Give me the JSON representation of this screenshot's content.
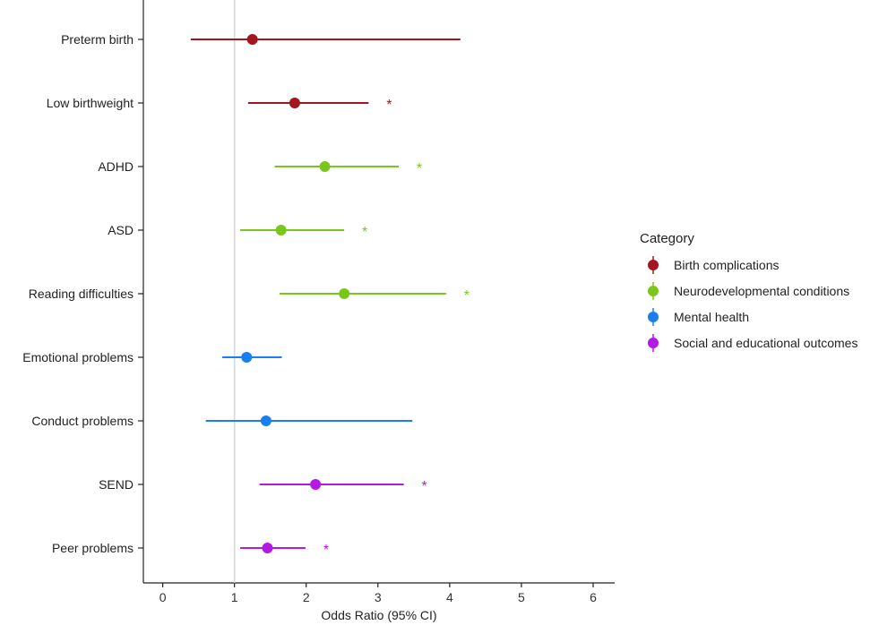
{
  "chart_data": {
    "type": "forest",
    "xlabel": "Odds Ratio (95% CI)",
    "xlim": [
      -0.27,
      6.3
    ],
    "xticks": [
      "0",
      "1",
      "2",
      "3",
      "4",
      "5",
      "6"
    ],
    "reference_line": 1,
    "legend": {
      "title": "Category",
      "position": "right",
      "items": [
        {
          "label": "Birth complications",
          "color": "#a3151f"
        },
        {
          "label": "Neurodevelopmental conditions",
          "color": "#79c71b"
        },
        {
          "label": "Mental health",
          "color": "#1a7fee"
        },
        {
          "label": "Social and educational outcomes",
          "color": "#b418e4"
        }
      ]
    },
    "rows": [
      {
        "label": "Preterm birth",
        "category": 0,
        "or": 1.25,
        "lo": 0.39,
        "hi": 4.15,
        "sig": false
      },
      {
        "label": "Low birthweight",
        "category": 0,
        "or": 1.84,
        "lo": 1.19,
        "hi": 2.87,
        "sig": true
      },
      {
        "label": "ADHD",
        "category": 1,
        "or": 2.26,
        "lo": 1.56,
        "hi": 3.29,
        "sig": true
      },
      {
        "label": "ASD",
        "category": 1,
        "or": 1.65,
        "lo": 1.08,
        "hi": 2.53,
        "sig": true
      },
      {
        "label": "Reading difficulties",
        "category": 1,
        "or": 2.53,
        "lo": 1.63,
        "hi": 3.95,
        "sig": true
      },
      {
        "label": "Emotional problems",
        "category": 2,
        "or": 1.17,
        "lo": 0.83,
        "hi": 1.66,
        "sig": false
      },
      {
        "label": "Conduct problems",
        "category": 2,
        "or": 1.44,
        "lo": 0.6,
        "hi": 3.48,
        "sig": false
      },
      {
        "label": "SEND",
        "category": 3,
        "or": 2.13,
        "lo": 1.35,
        "hi": 3.36,
        "sig": true
      },
      {
        "label": "Peer problems",
        "category": 3,
        "or": 1.46,
        "lo": 1.08,
        "hi": 1.99,
        "sig": true
      }
    ],
    "significance_marker": "*"
  }
}
